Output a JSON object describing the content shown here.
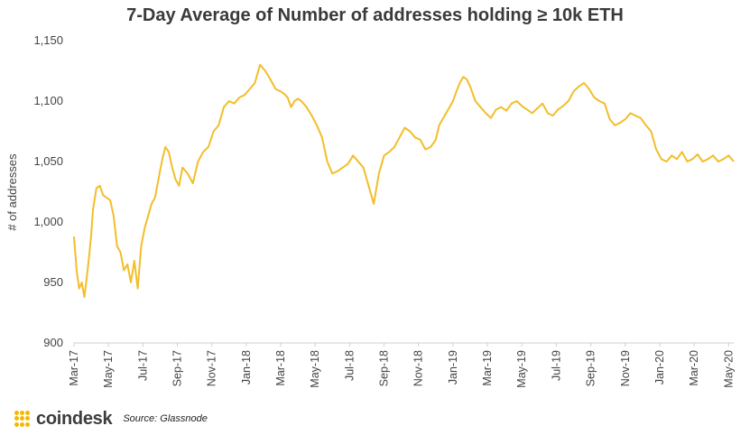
{
  "chart_data": {
    "type": "line",
    "title": "7-Day Average of Number of addresses holding ≥ 10k ETH",
    "xlabel": "",
    "ylabel": "# of addresses",
    "ylim": [
      900,
      1150
    ],
    "yticks": [
      900,
      950,
      1000,
      1050,
      1100,
      1150
    ],
    "ytick_labels": [
      "900",
      "950",
      "1,000",
      "1,050",
      "1,100",
      "1,150"
    ],
    "xticks": [
      "Mar-17",
      "May-17",
      "Jul-17",
      "Sep-17",
      "Nov-17",
      "Jan-18",
      "Mar-18",
      "May-18",
      "Jul-18",
      "Sep-18",
      "Nov-18",
      "Jan-19",
      "Mar-19",
      "May-19",
      "Jul-19",
      "Sep-19",
      "Nov-19",
      "Jan-20",
      "Mar-20",
      "May-20"
    ],
    "color": "#f2be2a",
    "series": [
      {
        "name": "Addresses holding >= 10k ETH (7d avg)",
        "x_month_index": [
          0,
          0.15,
          0.3,
          0.45,
          0.6,
          0.75,
          0.9,
          1.0,
          1.1,
          1.3,
          1.5,
          1.7,
          1.9,
          2.1,
          2.3,
          2.5,
          2.7,
          2.9,
          3.1,
          3.3,
          3.5,
          3.7,
          3.9,
          4.1,
          4.3,
          4.5,
          4.7,
          4.9,
          5.1,
          5.3,
          5.5,
          5.7,
          5.9,
          6.1,
          6.3,
          6.6,
          6.9,
          7.2,
          7.5,
          7.8,
          8.1,
          8.4,
          8.7,
          9.0,
          9.3,
          9.6,
          9.9,
          10.2,
          10.5,
          10.8,
          11.1,
          11.4,
          11.7,
          12.0,
          12.2,
          12.4,
          12.6,
          12.8,
          13.0,
          13.2,
          13.5,
          13.8,
          14.1,
          14.4,
          14.7,
          15.0,
          15.3,
          15.6,
          15.9,
          16.2,
          16.5,
          16.8,
          17.1,
          17.4,
          17.7,
          18.0,
          18.3,
          18.6,
          18.9,
          19.2,
          19.5,
          19.8,
          20.1,
          20.4,
          20.7,
          21.0,
          21.2,
          21.4,
          21.6,
          21.8,
          22.0,
          22.2,
          22.4,
          22.6,
          22.8,
          23.0,
          23.3,
          23.6,
          23.9,
          24.2,
          24.5,
          24.8,
          25.1,
          25.4,
          25.7,
          26.0,
          26.3,
          26.6,
          26.9,
          27.2,
          27.5,
          27.8,
          28.1,
          28.4,
          28.7,
          29.0,
          29.3,
          29.6,
          29.9,
          30.2,
          30.5,
          30.8,
          31.1,
          31.4,
          31.7,
          32.0,
          32.3,
          32.6,
          32.9,
          33.2,
          33.5,
          33.8,
          34.1,
          34.4,
          34.7,
          35.0,
          35.3,
          35.6,
          35.9,
          36.2,
          36.5,
          36.8,
          37.1,
          37.4,
          37.7,
          38.0,
          38.3
        ],
        "values": [
          988,
          960,
          945,
          950,
          938,
          955,
          975,
          990,
          1010,
          1028,
          1030,
          1022,
          1020,
          1018,
          1005,
          980,
          975,
          960,
          965,
          950,
          968,
          945,
          980,
          995,
          1005,
          1015,
          1020,
          1035,
          1050,
          1062,
          1058,
          1045,
          1035,
          1030,
          1045,
          1040,
          1032,
          1050,
          1058,
          1062,
          1075,
          1080,
          1095,
          1100,
          1098,
          1103,
          1105,
          1110,
          1115,
          1130,
          1125,
          1118,
          1110,
          1108,
          1106,
          1103,
          1095,
          1100,
          1102,
          1100,
          1095,
          1088,
          1080,
          1070,
          1050,
          1040,
          1042,
          1045,
          1048,
          1055,
          1050,
          1045,
          1030,
          1015,
          1040,
          1055,
          1058,
          1062,
          1070,
          1078,
          1075,
          1070,
          1068,
          1060,
          1062,
          1068,
          1080,
          1085,
          1090,
          1095,
          1100,
          1108,
          1115,
          1120,
          1118,
          1112,
          1100,
          1095,
          1090,
          1086,
          1093,
          1095,
          1092,
          1098,
          1100,
          1096,
          1093,
          1090,
          1094,
          1098,
          1090,
          1088,
          1093,
          1096,
          1100,
          1108,
          1112,
          1115,
          1110,
          1103,
          1100,
          1098,
          1085,
          1080,
          1082,
          1085,
          1090,
          1088,
          1086,
          1080,
          1075,
          1060,
          1052,
          1050,
          1055,
          1052,
          1058,
          1050,
          1052,
          1056,
          1050,
          1052,
          1055,
          1050,
          1052,
          1055,
          1050
        ]
      }
    ]
  },
  "footer": {
    "brand": "coindesk",
    "source": "Source: Glassnode"
  }
}
